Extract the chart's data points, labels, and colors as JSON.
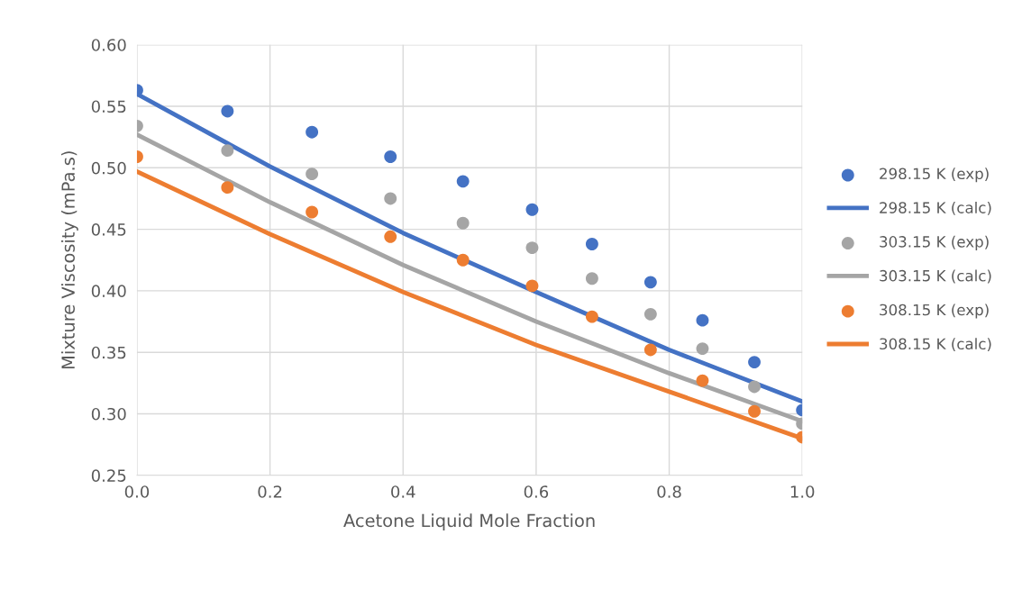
{
  "chart_data": {
    "type": "scatter",
    "xlabel": "Acetone Liquid Mole Fraction",
    "ylabel": "Mixture Viscosity (mPa.s)",
    "x": [
      0,
      0.136,
      0.263,
      0.381,
      0.49,
      0.594,
      0.684,
      0.772,
      0.85,
      0.928,
      1.0
    ],
    "series": [
      {
        "name": "298.15 K (exp)",
        "color": "#4472c4",
        "marker": "circle",
        "values": [
          0.563,
          0.546,
          0.529,
          0.509,
          0.489,
          0.466,
          0.438,
          0.407,
          0.376,
          0.342,
          0.303
        ]
      },
      {
        "name": "298.15 K (calc)",
        "color": "#4472c4",
        "type": "line",
        "marker": "none",
        "x": [
          0,
          0.2,
          0.4,
          0.6,
          0.8,
          1.0
        ],
        "values": [
          0.56,
          0.501,
          0.447,
          0.399,
          0.352,
          0.31
        ]
      },
      {
        "name": "303.15 K (exp)",
        "color": "#a5a5a5",
        "marker": "circle",
        "values": [
          0.534,
          0.514,
          0.495,
          0.475,
          0.455,
          0.435,
          0.41,
          0.381,
          0.353,
          0.322,
          0.292
        ]
      },
      {
        "name": "303.15 K (calc)",
        "color": "#a5a5a5",
        "type": "line",
        "marker": "none",
        "x": [
          0,
          0.2,
          0.4,
          0.6,
          0.8,
          1.0
        ],
        "values": [
          0.527,
          0.472,
          0.421,
          0.375,
          0.333,
          0.294
        ]
      },
      {
        "name": "308.15 K (exp)",
        "color": "#ed7d31",
        "marker": "circle",
        "values": [
          0.509,
          0.484,
          0.464,
          0.444,
          0.425,
          0.404,
          0.379,
          0.352,
          0.327,
          0.302,
          0.281
        ]
      },
      {
        "name": "308.15 K (calc)",
        "color": "#ed7d31",
        "type": "line",
        "marker": "none",
        "x": [
          0,
          0.2,
          0.4,
          0.6,
          0.8,
          1.0
        ],
        "values": [
          0.497,
          0.446,
          0.399,
          0.356,
          0.318,
          0.28
        ]
      }
    ],
    "xlim": [
      0,
      1.0
    ],
    "xticks": [
      {
        "value": 0,
        "label": "0.0"
      },
      0.2,
      0.4,
      0.6,
      0.8,
      {
        "value": 1.0,
        "label": "1.0"
      }
    ],
    "ylim": [
      0.25,
      0.6
    ],
    "yticks": [
      {
        "value": 0.25,
        "label": "0.25"
      },
      {
        "value": 0.3,
        "label": "0.30"
      },
      0.35,
      {
        "value": 0.4,
        "label": "0.40"
      },
      0.45,
      {
        "value": 0.5,
        "label": "0.50"
      },
      0.55,
      {
        "value": 0.6,
        "label": "0.60"
      }
    ],
    "grid": true,
    "legend": "right"
  }
}
